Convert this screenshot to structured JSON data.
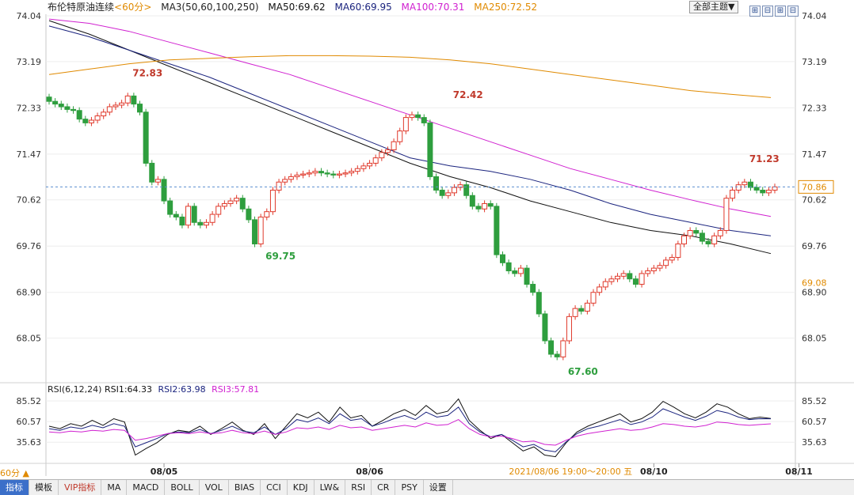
{
  "header": {
    "instrument": "布伦特原油连续",
    "period": "<60分>",
    "ma3_label": "MA3(50,60,100,250)",
    "ma50": "MA50:69.62",
    "ma60": "MA60:69.95",
    "ma100": "MA100:70.31",
    "ma250": "MA250:72.52",
    "theme_button": "全部主题▼",
    "window_buttons": [
      "⊞",
      "⊟",
      "⊞",
      "⊟"
    ]
  },
  "rsi_header": {
    "label": "RSI(6,12,24)",
    "rsi1": "RSI1:64.33",
    "rsi2": "RSI2:63.98",
    "rsi3": "RSI3:57.81"
  },
  "bottom_bar": {
    "period_selector": "60分 ▲",
    "tabs": [
      "指标",
      "模板",
      "VIP指标",
      "MA",
      "MACD",
      "BOLL",
      "VOL",
      "BIAS",
      "CCI",
      "KDJ",
      "LW&",
      "RSI",
      "CR",
      "PSY",
      "设置"
    ]
  },
  "colors": {
    "up": "#e0392b",
    "down": "#2e9e3e",
    "ma50": "#111111",
    "ma60": "#1a237e",
    "ma100": "#d020d0",
    "ma250": "#e08a00",
    "rsi1": "#111111",
    "rsi2": "#1a237e",
    "rsi3": "#d020d0",
    "last_price": "#e08a00"
  },
  "chart_data": [
    {
      "type": "candlestick",
      "title": "布伦特原油连续 <60分>",
      "y_ticks": [
        74.04,
        73.19,
        72.33,
        71.47,
        70.62,
        69.76,
        68.9,
        68.05
      ],
      "ylim": [
        67.25,
        74.04
      ],
      "x_ticks": [
        "08/05",
        "08/06",
        "08/10",
        "08/11"
      ],
      "x_tick_index": [
        19,
        53,
        100,
        124
      ],
      "crosshair_label": "2021/08/06 19:00～20:00 五",
      "crosshair_index": 81,
      "last_price": 70.86,
      "right_label": 69.08,
      "annotations": [
        {
          "text": "72.83",
          "index": 13,
          "value": 72.83
        },
        {
          "text": "69.75",
          "index": 35,
          "value": 69.75
        },
        {
          "text": "72.42",
          "index": 66,
          "value": 72.42
        },
        {
          "text": "67.60",
          "index": 85,
          "value": 67.6
        },
        {
          "text": "71.23",
          "index": 115,
          "value": 71.23
        }
      ],
      "candles_close": [
        72.45,
        72.4,
        72.35,
        72.3,
        72.28,
        72.12,
        72.05,
        72.1,
        72.18,
        72.25,
        72.35,
        72.38,
        72.42,
        72.55,
        72.4,
        72.25,
        71.3,
        70.95,
        71.0,
        70.6,
        70.35,
        70.3,
        70.15,
        70.5,
        70.2,
        70.15,
        70.2,
        70.35,
        70.5,
        70.55,
        70.6,
        70.65,
        70.45,
        70.25,
        69.8,
        70.3,
        70.4,
        70.8,
        70.95,
        71.0,
        71.05,
        71.08,
        71.1,
        71.12,
        71.15,
        71.12,
        71.1,
        71.08,
        71.1,
        71.12,
        71.15,
        71.2,
        71.25,
        71.3,
        71.4,
        71.5,
        71.55,
        71.7,
        71.9,
        72.15,
        72.2,
        72.15,
        72.05,
        71.05,
        70.8,
        70.7,
        70.75,
        70.85,
        70.9,
        70.7,
        70.5,
        70.45,
        70.55,
        70.5,
        69.6,
        69.45,
        69.3,
        69.25,
        69.35,
        69.05,
        68.9,
        68.5,
        68.0,
        67.75,
        67.7,
        68.0,
        68.45,
        68.6,
        68.55,
        68.7,
        68.9,
        69.0,
        69.1,
        69.15,
        69.2,
        69.25,
        69.15,
        69.05,
        69.25,
        69.3,
        69.35,
        69.4,
        69.5,
        69.55,
        69.8,
        69.95,
        70.05,
        70.0,
        69.85,
        69.8,
        69.95,
        70.05,
        70.65,
        70.8,
        70.9,
        70.95,
        70.85,
        70.8,
        70.75,
        70.8,
        70.86
      ],
      "series": [
        {
          "name": "MA50",
          "values": [
            73.95,
            73.7,
            73.4,
            73.1,
            72.8,
            72.5,
            72.2,
            71.9,
            71.6,
            71.3,
            71.05,
            70.85,
            70.6,
            70.4,
            70.2,
            70.05,
            69.95,
            69.8,
            69.62
          ]
        },
        {
          "name": "MA60",
          "values": [
            73.85,
            73.65,
            73.4,
            73.15,
            72.9,
            72.6,
            72.3,
            72.0,
            71.7,
            71.4,
            71.25,
            71.15,
            71.0,
            70.8,
            70.55,
            70.35,
            70.2,
            70.05,
            69.95
          ]
        },
        {
          "name": "MA100",
          "values": [
            73.98,
            73.9,
            73.75,
            73.55,
            73.35,
            73.15,
            72.95,
            72.7,
            72.45,
            72.2,
            71.95,
            71.7,
            71.45,
            71.2,
            71.0,
            70.8,
            70.62,
            70.45,
            70.31
          ]
        },
        {
          "name": "MA250",
          "values": [
            72.95,
            73.05,
            73.15,
            73.22,
            73.25,
            73.28,
            73.3,
            73.3,
            73.29,
            73.27,
            73.22,
            73.15,
            73.05,
            72.95,
            72.85,
            72.75,
            72.65,
            72.58,
            72.52
          ]
        }
      ]
    },
    {
      "type": "line",
      "title": "RSI(6,12,24)",
      "y_ticks": [
        85.52,
        60.57,
        35.63
      ],
      "ylim": [
        10.0,
        98.0
      ],
      "series": [
        {
          "name": "RSI1",
          "values": [
            55,
            52,
            58,
            55,
            62,
            56,
            64,
            60,
            20,
            28,
            35,
            45,
            50,
            48,
            55,
            45,
            52,
            60,
            50,
            45,
            58,
            40,
            55,
            70,
            65,
            72,
            60,
            78,
            65,
            68,
            55,
            62,
            70,
            75,
            68,
            80,
            70,
            73,
            88,
            62,
            50,
            40,
            45,
            35,
            25,
            30,
            20,
            18,
            35,
            48,
            55,
            60,
            65,
            70,
            60,
            64,
            72,
            85,
            78,
            70,
            65,
            72,
            82,
            78,
            70,
            64,
            66,
            64.33
          ]
        },
        {
          "name": "RSI2",
          "values": [
            52,
            50,
            54,
            52,
            56,
            53,
            58,
            55,
            30,
            35,
            40,
            46,
            48,
            47,
            51,
            46,
            50,
            55,
            49,
            47,
            54,
            45,
            52,
            63,
            60,
            65,
            58,
            70,
            62,
            64,
            55,
            59,
            64,
            68,
            63,
            72,
            66,
            68,
            78,
            58,
            48,
            42,
            45,
            38,
            30,
            33,
            26,
            24,
            36,
            46,
            52,
            55,
            59,
            63,
            57,
            60,
            66,
            76,
            71,
            66,
            62,
            67,
            74,
            71,
            66,
            63,
            64,
            63.98
          ]
        },
        {
          "name": "RSI3",
          "values": [
            48,
            47,
            49,
            48,
            50,
            49,
            51,
            50,
            38,
            40,
            43,
            46,
            47,
            46,
            48,
            46,
            47,
            50,
            47,
            46,
            49,
            45,
            48,
            53,
            52,
            54,
            51,
            56,
            53,
            54,
            50,
            52,
            54,
            56,
            54,
            59,
            56,
            57,
            63,
            52,
            45,
            42,
            43,
            40,
            36,
            37,
            33,
            32,
            38,
            43,
            46,
            48,
            50,
            52,
            50,
            51,
            54,
            58,
            57,
            55,
            54,
            56,
            60,
            59,
            57,
            56,
            57,
            57.81
          ]
        }
      ]
    }
  ]
}
